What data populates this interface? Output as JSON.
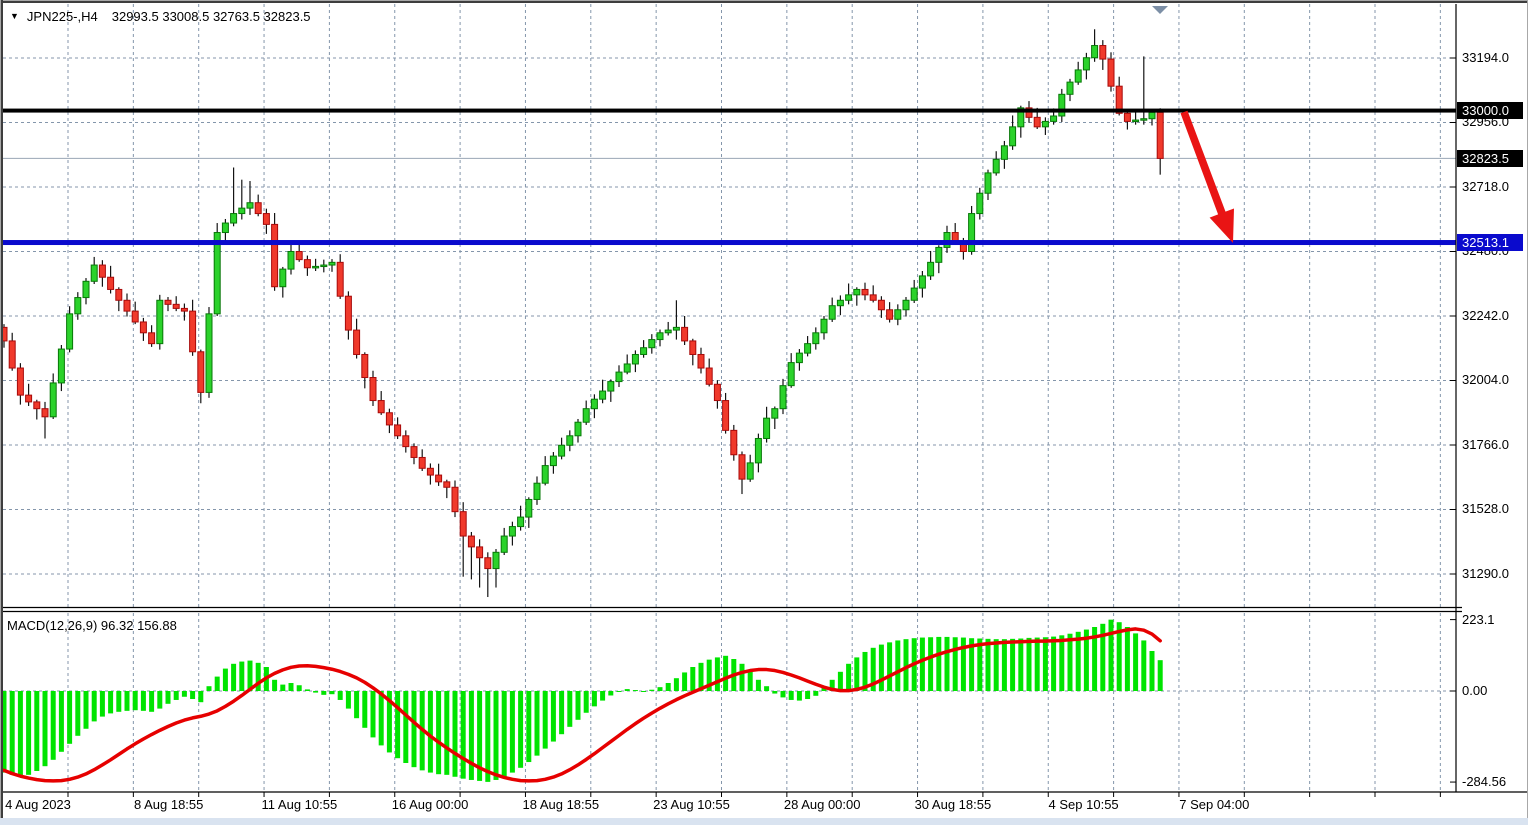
{
  "window": {
    "title_symbol": "JPN225-,H4",
    "title_ohlc": "32993.5 33008.5 32763.5 32823.5",
    "dropdown_marker": "▼"
  },
  "price_axis": {
    "ticks": [
      "33194.0",
      "32956.0",
      "32718.0",
      "32480.0",
      "32242.0",
      "32004.0",
      "31766.0",
      "31528.0",
      "31290.0"
    ],
    "markers": [
      {
        "label": "33000.0",
        "role": "resistance-level-price",
        "bg": "#000000"
      },
      {
        "label": "32823.5",
        "role": "last-price",
        "bg": "#000000"
      },
      {
        "label": "32513.1",
        "role": "support-level-price",
        "bg": "#0A0ACD"
      }
    ]
  },
  "time_axis": {
    "labels": [
      "4 Aug 2023",
      "8 Aug 18:55",
      "11 Aug 10:55",
      "16 Aug 00:00",
      "18 Aug 18:55",
      "23 Aug 10:55",
      "28 Aug 00:00",
      "30 Aug 18:55",
      "4 Sep 10:55",
      "7 Sep 04:00"
    ]
  },
  "macd_panel": {
    "label": "MACD(12,26,9) 96.32 156.88",
    "axis_ticks": [
      "223.1",
      "0.00",
      "-284.56"
    ]
  },
  "chart_data": {
    "type": "candlestick",
    "symbol": "JPN225",
    "timeframe": "H4",
    "last_quote": {
      "open": 32993.5,
      "high": 33008.5,
      "low": 32763.5,
      "close": 32823.5
    },
    "price_axis_ticks": [
      33194.0,
      32956.0,
      32718.0,
      32480.0,
      32242.0,
      32004.0,
      31766.0,
      31528.0,
      31290.0
    ],
    "levels": {
      "black_resistance_line": 33000.0,
      "blue_support_line": 32513.1,
      "gray_last_price_line": 32823.5
    },
    "annotation": {
      "red_arrow": {
        "meaning": "projected-drop",
        "from_price": 32990,
        "to_price": 32513,
        "direction": "down-right"
      }
    },
    "candles": {
      "open": [
        32200,
        32150,
        32050,
        31950,
        31925,
        31900,
        31870,
        31995,
        32120,
        32250,
        32310,
        32370,
        32430,
        32385,
        32340,
        32300,
        32260,
        32220,
        32180,
        32140,
        32300,
        32285,
        32270,
        32260,
        32110,
        31960,
        32250,
        32550,
        32585,
        32620,
        32640,
        32660,
        32620,
        32580,
        32350,
        32415,
        32480,
        32450,
        32420,
        32425,
        32430,
        32440,
        32315,
        32190,
        32100,
        32015,
        31930,
        31885,
        31840,
        31800,
        31760,
        31720,
        31680,
        31655,
        31630,
        31610,
        31520,
        31430,
        31390,
        31350,
        31310,
        31370,
        31430,
        31465,
        31500,
        31565,
        31625,
        31690,
        31725,
        31765,
        31800,
        31850,
        31900,
        31935,
        31965,
        32000,
        32035,
        32065,
        32100,
        32125,
        32155,
        32180,
        32190,
        32200,
        32150,
        32100,
        32050,
        31990,
        31930,
        31820,
        31730,
        31640,
        31700,
        31790,
        31865,
        31900,
        31985,
        32070,
        32105,
        32140,
        32180,
        32230,
        32280,
        32300,
        32320,
        32340,
        32320,
        32300,
        32265,
        32230,
        32265,
        32300,
        32345,
        32390,
        32440,
        32495,
        32550,
        32515,
        32480,
        32620,
        32695,
        32770,
        32820,
        32870,
        32940,
        33010,
        32975,
        32940,
        32960,
        32980,
        33060,
        33105,
        33150,
        33195,
        33240,
        33190,
        33090,
        32990,
        32960,
        32965,
        32970,
        32993.5
      ],
      "high": [
        32212,
        32180,
        32068,
        31992,
        31933,
        31925,
        32030,
        32135,
        32278,
        32330,
        32382,
        32460,
        32448,
        32427,
        32348,
        32325,
        32295,
        32235,
        32208,
        32320,
        32312,
        32315,
        32288,
        32302,
        32118,
        32275,
        32585,
        32600,
        32790,
        32745,
        32740,
        32690,
        32638,
        32622,
        32423,
        32505,
        32515,
        32465,
        32453,
        32450,
        32452,
        32470,
        32333,
        32232,
        32108,
        32040,
        31965,
        31900,
        31868,
        31820,
        31772,
        31750,
        31698,
        31697,
        31638,
        31635,
        31555,
        31445,
        31418,
        31370,
        31382,
        31460,
        31483,
        31542,
        31573,
        31650,
        31725,
        31740,
        31793,
        31820,
        31862,
        31930,
        31953,
        32007,
        32008,
        32060,
        32100,
        32115,
        32153,
        32175,
        32192,
        32220,
        32300,
        32242,
        32158,
        32125,
        32085,
        32005,
        31958,
        31840,
        31742,
        31730,
        31808,
        31907,
        31908,
        32010,
        32105,
        32120,
        32168,
        32200,
        32242,
        32310,
        32318,
        32362,
        32348,
        32365,
        32355,
        32315,
        32293,
        32285,
        32312,
        32375,
        32408,
        32482,
        32503,
        32575,
        32585,
        32530,
        32648,
        32715,
        32782,
        32850,
        32888,
        32982,
        33018,
        33035,
        33010,
        32975,
        33008,
        33080,
        33117,
        33180,
        33213,
        33300,
        33260,
        33215,
        33125,
        33005,
        32993,
        33200,
        33005,
        33008.5
      ],
      "low": [
        32125,
        32040,
        31915,
        31910,
        31860,
        31790,
        31862,
        31965,
        32108,
        32228,
        32285,
        32360,
        32350,
        32325,
        32260,
        32240,
        32212,
        32150,
        32128,
        32118,
        32260,
        32260,
        32225,
        32095,
        31920,
        31940,
        32242,
        32520,
        32573,
        32598,
        32615,
        32610,
        32545,
        32335,
        32310,
        32395,
        32442,
        32390,
        32408,
        32403,
        32405,
        32305,
        32155,
        32085,
        31975,
        31910,
        31877,
        31810,
        31788,
        31738,
        31695,
        31670,
        31620,
        31615,
        31570,
        31500,
        31280,
        31270,
        31240,
        31205,
        31240,
        31360,
        31395,
        31450,
        31460,
        31545,
        31617,
        31660,
        31713,
        31743,
        31775,
        31840,
        31865,
        31920,
        31925,
        31980,
        32027,
        32035,
        32088,
        32103,
        32130,
        32170,
        32155,
        32135,
        32060,
        32030,
        31982,
        31900,
        31808,
        31708,
        31585,
        31630,
        31665,
        31775,
        31825,
        31880,
        31977,
        32040,
        32093,
        32118,
        32155,
        32220,
        32245,
        32285,
        32280,
        32300,
        32292,
        32235,
        32218,
        32208,
        32240,
        32290,
        32310,
        32375,
        32400,
        32475,
        32507,
        32450,
        32468,
        32598,
        32670,
        32760,
        32785,
        32855,
        32900,
        32955,
        32932,
        32910,
        32948,
        32958,
        33035,
        33095,
        33115,
        33180,
        33150,
        33070,
        32982,
        32930,
        32948,
        32948,
        32945,
        32763.5
      ],
      "close": [
        32150,
        32050,
        31950,
        31925,
        31900,
        31870,
        31995,
        32120,
        32250,
        32310,
        32370,
        32430,
        32385,
        32340,
        32300,
        32260,
        32220,
        32180,
        32140,
        32300,
        32285,
        32270,
        32260,
        32110,
        31960,
        32250,
        32550,
        32585,
        32620,
        32640,
        32660,
        32620,
        32580,
        32350,
        32415,
        32480,
        32450,
        32420,
        32425,
        32430,
        32440,
        32315,
        32190,
        32100,
        32015,
        31930,
        31885,
        31840,
        31800,
        31760,
        31720,
        31680,
        31655,
        31630,
        31610,
        31520,
        31430,
        31390,
        31350,
        31310,
        31370,
        31430,
        31465,
        31500,
        31565,
        31625,
        31690,
        31725,
        31765,
        31800,
        31850,
        31900,
        31935,
        31965,
        32000,
        32035,
        32065,
        32100,
        32125,
        32155,
        32180,
        32190,
        32200,
        32150,
        32100,
        32050,
        31990,
        31930,
        31820,
        31730,
        31640,
        31700,
        31790,
        31865,
        31900,
        31985,
        32070,
        32105,
        32140,
        32180,
        32230,
        32280,
        32300,
        32320,
        32340,
        32320,
        32300,
        32265,
        32230,
        32265,
        32300,
        32345,
        32390,
        32440,
        32495,
        32550,
        32515,
        32480,
        32620,
        32695,
        32770,
        32820,
        32870,
        32940,
        33010,
        32975,
        32940,
        32960,
        32980,
        33060,
        33105,
        33150,
        33195,
        33240,
        33190,
        33090,
        32990,
        32960,
        32965,
        32970,
        32993.5,
        32823.5
      ]
    },
    "macd": {
      "params": "12,26,9",
      "main_last": 96.32,
      "signal_last": 156.88,
      "axis_max": 223.1,
      "axis_min": -284.56,
      "histogram": [
        -255,
        -262,
        -268,
        -262,
        -250,
        -235,
        -215,
        -190,
        -165,
        -140,
        -118,
        -95,
        -80,
        -70,
        -65,
        -62,
        -60,
        -62,
        -65,
        -55,
        -40,
        -28,
        -18,
        -25,
        -35,
        15,
        45,
        70,
        85,
        92,
        95,
        88,
        75,
        35,
        20,
        25,
        18,
        5,
        -5,
        -12,
        -10,
        -28,
        -55,
        -85,
        -115,
        -145,
        -170,
        -192,
        -210,
        -225,
        -238,
        -248,
        -255,
        -260,
        -262,
        -268,
        -274,
        -278,
        -281,
        -284,
        -278,
        -268,
        -255,
        -240,
        -222,
        -202,
        -180,
        -158,
        -135,
        -112,
        -90,
        -68,
        -48,
        -30,
        -14,
        -2,
        6,
        3,
        -2,
        4,
        12,
        25,
        40,
        58,
        75,
        88,
        98,
        105,
        110,
        100,
        85,
        60,
        35,
        15,
        -8,
        -20,
        -28,
        -30,
        -25,
        -15,
        10,
        35,
        60,
        85,
        105,
        122,
        135,
        145,
        152,
        158,
        162,
        165,
        167,
        168,
        169,
        169,
        168,
        167,
        165,
        164,
        163,
        162,
        162,
        163,
        164,
        166,
        167,
        168,
        170,
        174,
        179,
        185,
        192,
        200,
        210,
        223,
        215,
        200,
        180,
        158,
        125,
        96.32
      ],
      "signal": [
        -248,
        -258,
        -266,
        -272,
        -277,
        -280,
        -281,
        -280,
        -276,
        -269,
        -259,
        -246,
        -231,
        -215,
        -198,
        -181,
        -165,
        -150,
        -136,
        -123,
        -111,
        -100,
        -91,
        -84,
        -79,
        -72,
        -62,
        -48,
        -32,
        -14,
        5,
        24,
        41,
        55,
        66,
        74,
        78,
        79,
        77,
        73,
        68,
        61,
        52,
        41,
        27,
        10,
        -9,
        -30,
        -52,
        -75,
        -98,
        -120,
        -141,
        -160,
        -178,
        -195,
        -211,
        -226,
        -240,
        -252,
        -262,
        -270,
        -276,
        -280,
        -281,
        -280,
        -276,
        -269,
        -259,
        -246,
        -231,
        -214,
        -196,
        -177,
        -158,
        -139,
        -120,
        -102,
        -85,
        -69,
        -54,
        -40,
        -27,
        -15,
        -4,
        7,
        18,
        29,
        40,
        50,
        58,
        64,
        67,
        67,
        64,
        58,
        50,
        41,
        31,
        21,
        12,
        5,
        1,
        1,
        5,
        12,
        22,
        34,
        47,
        60,
        73,
        85,
        96,
        106,
        115,
        123,
        130,
        136,
        141,
        145,
        148,
        150,
        152,
        153,
        154,
        155,
        156,
        156,
        157,
        158,
        160,
        162,
        165,
        169,
        174,
        180,
        186,
        191,
        194,
        190,
        178,
        156.88
      ]
    },
    "colors": {
      "bull": "#2BD22B",
      "bull_border": "#077807",
      "bear": "#F0392B",
      "bear_border": "#A80A0A",
      "wick": "#141414",
      "macd_hist": "#00E400",
      "macd_signal": "#E60000",
      "grid": "#8496AB",
      "blue_line": "#0A0ACD",
      "black_line": "#000000",
      "last_price_line": "#9AA6B4",
      "arrow": "#E91414",
      "shift_marker": "#7C8FA6"
    }
  }
}
